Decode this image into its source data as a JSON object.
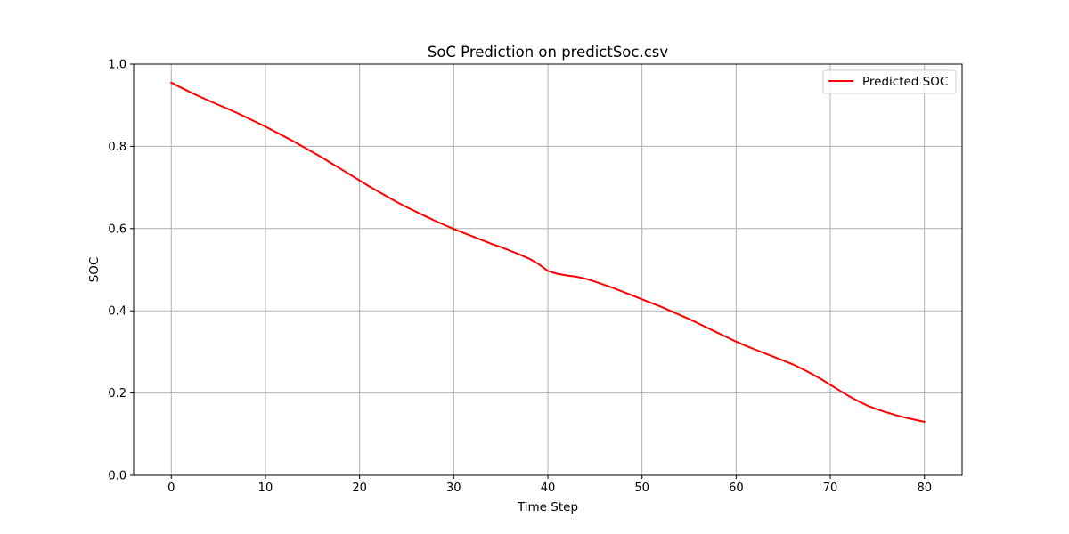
{
  "chart_data": {
    "type": "line",
    "title": "SoC Prediction on predictSoc.csv",
    "xlabel": "Time Step",
    "ylabel": "SOC",
    "xlim": [
      -4,
      84
    ],
    "ylim": [
      0.0,
      1.0
    ],
    "xticks": [
      0,
      10,
      20,
      30,
      40,
      50,
      60,
      70,
      80
    ],
    "xtick_labels": [
      "0",
      "10",
      "20",
      "30",
      "40",
      "50",
      "60",
      "70",
      "80"
    ],
    "yticks": [
      0.0,
      0.2,
      0.4,
      0.6,
      0.8,
      1.0
    ],
    "ytick_labels": [
      "0.0",
      "0.2",
      "0.4",
      "0.6",
      "0.8",
      "1.0"
    ],
    "grid": true,
    "legend_position": "upper right",
    "series": [
      {
        "name": "Predicted SOC",
        "color": "#ff0000",
        "x": [
          0,
          1,
          2,
          3,
          4,
          5,
          6,
          7,
          8,
          9,
          10,
          11,
          12,
          13,
          14,
          15,
          16,
          17,
          18,
          19,
          20,
          21,
          22,
          23,
          24,
          25,
          26,
          27,
          28,
          29,
          30,
          31,
          32,
          33,
          34,
          35,
          36,
          37,
          38,
          39,
          40,
          41,
          42,
          43,
          44,
          45,
          46,
          47,
          48,
          49,
          50,
          51,
          52,
          53,
          54,
          55,
          56,
          57,
          58,
          59,
          60,
          61,
          62,
          63,
          64,
          65,
          66,
          67,
          68,
          69,
          70,
          71,
          72,
          73,
          74,
          75,
          76,
          77,
          78,
          79,
          80
        ],
        "y": [
          0.955,
          0.943,
          0.932,
          0.921,
          0.911,
          0.901,
          0.891,
          0.881,
          0.87,
          0.859,
          0.848,
          0.836,
          0.824,
          0.812,
          0.799,
          0.786,
          0.773,
          0.759,
          0.745,
          0.731,
          0.717,
          0.703,
          0.69,
          0.677,
          0.664,
          0.652,
          0.641,
          0.63,
          0.619,
          0.609,
          0.599,
          0.59,
          0.581,
          0.572,
          0.563,
          0.555,
          0.546,
          0.537,
          0.527,
          0.514,
          0.497,
          0.49,
          0.486,
          0.483,
          0.478,
          0.471,
          0.463,
          0.455,
          0.446,
          0.437,
          0.428,
          0.419,
          0.41,
          0.4,
          0.39,
          0.38,
          0.369,
          0.358,
          0.347,
          0.336,
          0.325,
          0.315,
          0.306,
          0.297,
          0.288,
          0.279,
          0.27,
          0.259,
          0.247,
          0.234,
          0.22,
          0.206,
          0.192,
          0.18,
          0.169,
          0.16,
          0.153,
          0.146,
          0.14,
          0.135,
          0.13
        ]
      }
    ]
  }
}
